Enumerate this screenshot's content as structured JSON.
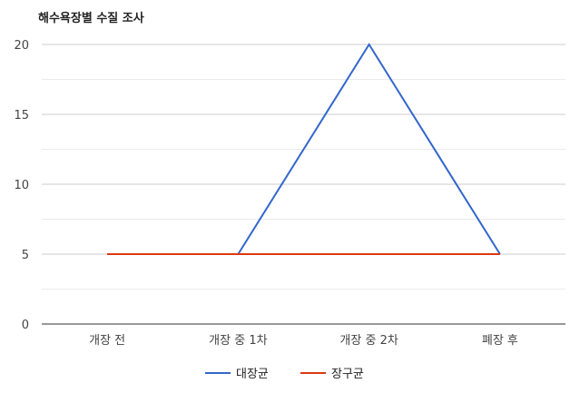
{
  "chart_data": {
    "type": "line",
    "title": "해수욕장별 수질 조사",
    "categories": [
      "개장 전",
      "개장 중 1차",
      "개장 중 2차",
      "폐장 후"
    ],
    "series": [
      {
        "name": "대장균",
        "values": [
          5,
          5,
          20,
          5
        ],
        "color": "#3366cc"
      },
      {
        "name": "장구균",
        "values": [
          5,
          5,
          5,
          5
        ],
        "color": "#dc3912"
      }
    ],
    "ylim": [
      0,
      20
    ],
    "yticks": [
      "0",
      "5",
      "10",
      "15",
      "20"
    ],
    "grid": true,
    "legend": "bottom"
  }
}
